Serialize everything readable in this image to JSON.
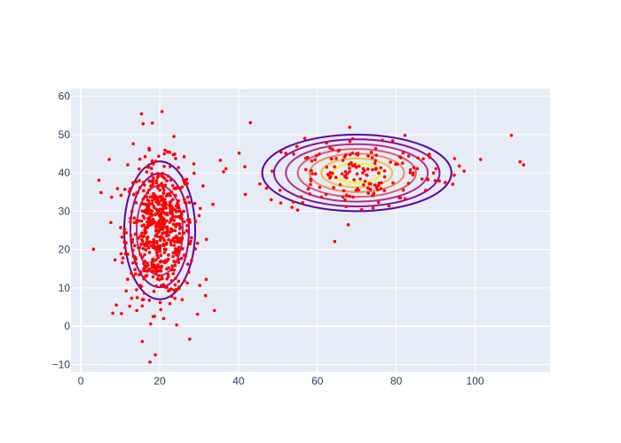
{
  "chart_data": {
    "type": "scatter",
    "title": "",
    "xlabel": "",
    "ylabel": "",
    "xlim": [
      -2.5,
      119
    ],
    "ylim": [
      -12,
      62
    ],
    "x_ticks": [
      0,
      20,
      40,
      60,
      80,
      100
    ],
    "y_ticks": [
      -10,
      0,
      10,
      20,
      30,
      40,
      50,
      60
    ],
    "grid": true,
    "legend": "none",
    "colors": {
      "plot_background": "#e5ecf6",
      "grid": "#ffffff",
      "points": "#ff0000",
      "tick_text": "#2a3f5f",
      "contour_scale": [
        "#5b00a6",
        "#8b0ca0",
        "#b52c8a",
        "#d85776",
        "#f18a5e",
        "#fbbc3f",
        "#f0f921"
      ]
    },
    "clusters": [
      {
        "center": [
          20,
          25
        ],
        "spread": [
          4.5,
          9
        ],
        "count": 600
      },
      {
        "center": [
          70,
          40
        ],
        "spread": [
          12,
          5
        ],
        "count": 150
      }
    ],
    "series": [
      {
        "marker": "point",
        "x": [
          18.9,
          24.3,
          14.2,
          17.7,
          21.0,
          27.6,
          12.4,
          20.6,
          15.4,
          23.6,
          41.6,
          4.6,
          13.3,
          15.8,
          3.2,
          9.0,
          17.4,
          33.9,
          11.9,
          31.0,
          22.0,
          26.2,
          14.8,
          24.9,
          12.8,
          10.2,
          8.1,
          7.2,
          9.3,
          18.4,
          16.1,
          22.6,
          29.1,
          31.8,
          19.5,
          25.7,
          35.4,
          36.2,
          43.0,
          47.1,
          55.0,
          56.8,
          60.5,
          62.3,
          64.4,
          66.5,
          68.2,
          70.3,
          72.1,
          74.6,
          77.0,
          79.1,
          82.2,
          83.6,
          85.5,
          88.0,
          90.1,
          92.4,
          94.7,
          96.0,
          101.4,
          109.2,
          111.4,
          112.3,
          67.3,
          71.2,
          75.5,
          58.7,
          63.2,
          84.5,
          64.7,
          81.8
        ],
        "y": [
          -7.5,
          0.3,
          4.1,
          0.6,
          2.0,
          -3.4,
          5.2,
          56.0,
          55.4,
          49.5,
          41.6,
          38.1,
          47.6,
          52.8,
          20.1,
          5.5,
          46.0,
          4.1,
          42.1,
          36.6,
          45.5,
          44.2,
          41.0,
          10.2,
          13.8,
          18.9,
          3.4,
          43.5,
          35.9,
          38.7,
          8.6,
          9.5,
          27.3,
          12.2,
          33.3,
          6.9,
          43.3,
          40.3,
          53.1,
          36.0,
          30.3,
          49.0,
          44.9,
          47.8,
          22.1,
          33.7,
          51.9,
          45.1,
          37.8,
          42.5,
          35.4,
          48.4,
          49.8,
          40.8,
          43.9,
          38.2,
          41.1,
          37.5,
          39.4,
          41.8,
          43.5,
          49.8,
          42.9,
          42.1,
          31.2,
          30.4,
          32.3,
          39.8,
          46.5,
          41.4,
          38.8,
          35.5
        ]
      }
    ]
  }
}
